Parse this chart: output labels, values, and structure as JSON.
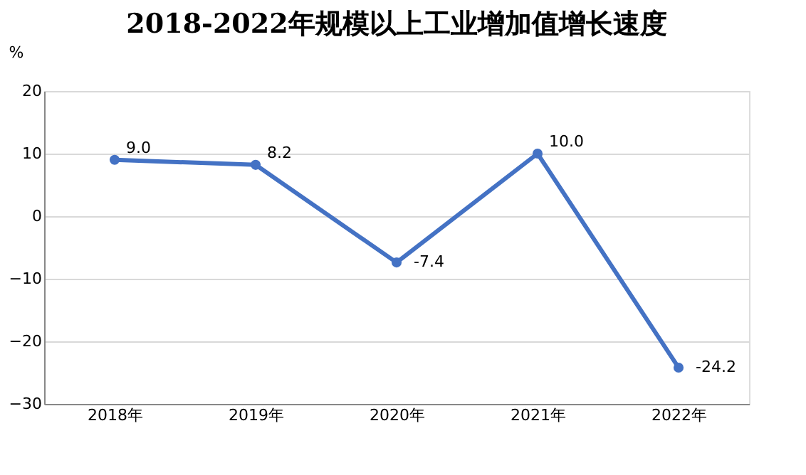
{
  "chart_data": {
    "type": "line",
    "title": "2018-2022年规模以上工业增加值增长速度",
    "ylabel": "%",
    "categories": [
      "2018年",
      "2019年",
      "2020年",
      "2021年",
      "2022年"
    ],
    "series": [
      {
        "color": "#4472c4",
        "values": [
          9.0,
          8.2,
          -7.4,
          10.0,
          -24.2
        ],
        "value_labels": [
          "9.0",
          "8.2",
          "-7.4",
          "10.0",
          "-24.2"
        ]
      }
    ],
    "ylim": [
      -30,
      20
    ],
    "yticks": [
      -30,
      -20,
      -10,
      0,
      10,
      20
    ],
    "grid": "y",
    "marker": "circle",
    "line_style": "solid"
  }
}
